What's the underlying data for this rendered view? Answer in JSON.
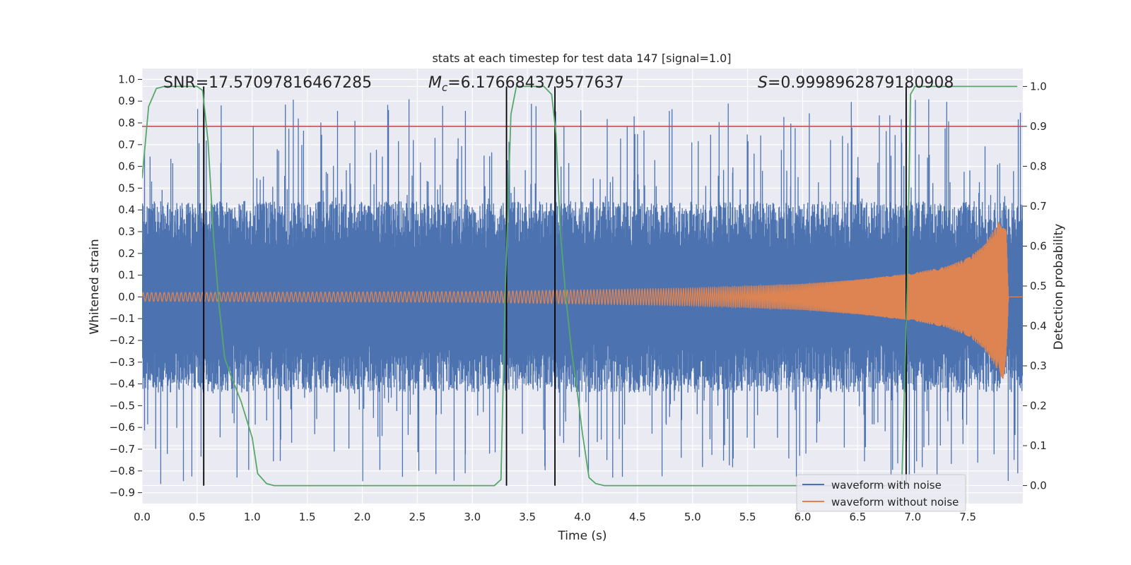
{
  "chart_data": {
    "type": "line",
    "title": "stats at each timestep for test data 147 [signal=1.0]",
    "xlabel": "Time (s)",
    "ylabel": "Whitened strain",
    "y2label": "Detection probability",
    "xlim": [
      0.0,
      8.0
    ],
    "ylim": [
      -0.95,
      1.05
    ],
    "y2lim": [
      -0.045,
      1.045
    ],
    "xticks": [
      "0.0",
      "0.5",
      "1.0",
      "1.5",
      "2.0",
      "2.5",
      "3.0",
      "3.5",
      "4.0",
      "4.5",
      "5.0",
      "5.5",
      "6.0",
      "6.5",
      "7.0",
      "7.5"
    ],
    "yticks": [
      "1.0",
      "0.9",
      "0.8",
      "0.7",
      "0.6",
      "0.5",
      "0.4",
      "0.3",
      "0.2",
      "0.1",
      "0.0",
      "-0.1",
      "-0.2",
      "-0.3",
      "-0.4",
      "-0.5",
      "-0.6",
      "-0.7",
      "-0.8",
      "-0.9"
    ],
    "y2ticks": [
      "1.0",
      "0.9",
      "0.8",
      "0.7",
      "0.6",
      "0.5",
      "0.4",
      "0.3",
      "0.2",
      "0.1",
      "0.0"
    ],
    "grid": true,
    "legend": "bottom-right",
    "annotations": {
      "snr": "SNR=17.57097816467285",
      "mc_symbol": "M",
      "mc_sub": "c",
      "mc_value": "=6.176684379577637",
      "s_symbol": "S",
      "s_value": "=0.9998962879180908"
    },
    "threshold": {
      "y2": 0.9,
      "color": "#c44e52"
    },
    "vertical_lines_x": [
      0.56,
      3.31,
      3.75,
      6.94
    ],
    "series": [
      {
        "name": "waveform with noise",
        "color": "#4c72b0",
        "axis": "left",
        "description_envelope": {
          "typical_abs": 0.4,
          "max_peak": 0.91,
          "min_peak": -0.86
        }
      },
      {
        "name": "waveform without noise",
        "color": "#dd8452",
        "axis": "left",
        "envelope": {
          "x": [
            0.0,
            3.0,
            5.0,
            6.0,
            6.5,
            7.0,
            7.3,
            7.5,
            7.65,
            7.75,
            7.82,
            7.85,
            7.87
          ],
          "amp": [
            0.02,
            0.025,
            0.04,
            0.06,
            0.08,
            0.11,
            0.14,
            0.18,
            0.24,
            0.32,
            0.38,
            0.3,
            0.0
          ]
        },
        "ends_at_x": 7.87
      },
      {
        "name": "detection probability",
        "color": "#55a868",
        "axis": "right",
        "x": [
          0.0,
          0.06,
          0.13,
          0.2,
          0.3,
          0.4,
          0.5,
          0.55,
          0.6,
          0.65,
          0.7,
          0.75,
          0.8,
          0.9,
          1.0,
          1.05,
          1.13,
          1.2,
          1.5,
          2.0,
          2.5,
          3.0,
          3.2,
          3.26,
          3.3,
          3.35,
          3.4,
          3.5,
          3.65,
          3.72,
          3.76,
          3.8,
          3.85,
          3.9,
          3.95,
          4.0,
          4.06,
          4.12,
          4.2,
          4.5,
          5.0,
          6.0,
          6.5,
          6.9,
          6.95,
          6.98,
          7.02,
          7.5,
          7.95
        ],
        "y": [
          0.77,
          0.95,
          0.995,
          1.0,
          1.0,
          1.0,
          1.0,
          0.99,
          0.86,
          0.62,
          0.45,
          0.32,
          0.28,
          0.21,
          0.12,
          0.03,
          0.005,
          0.0,
          0.0,
          0.0,
          0.0,
          0.0,
          0.0,
          0.015,
          0.5,
          0.93,
          1.0,
          1.0,
          1.0,
          0.98,
          0.88,
          0.63,
          0.47,
          0.34,
          0.24,
          0.13,
          0.02,
          0.005,
          0.0,
          0.0,
          0.0,
          0.0,
          0.0,
          0.0,
          0.5,
          0.98,
          1.0,
          1.0,
          1.0
        ]
      }
    ]
  }
}
